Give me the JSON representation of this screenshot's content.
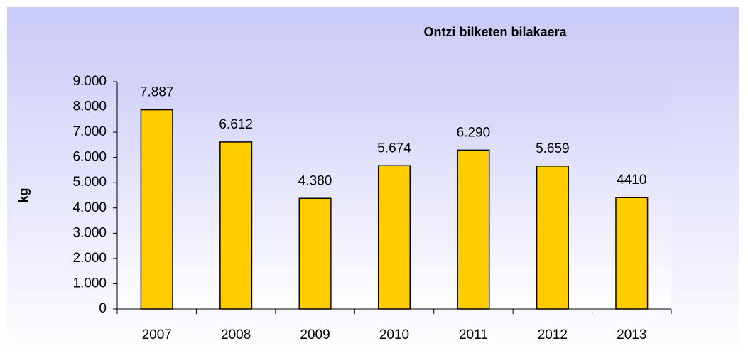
{
  "chart_data": {
    "type": "bar",
    "title": "Ontzi bilketen bilakaera",
    "y_label": "kg",
    "categories": [
      "2007",
      "2008",
      "2009",
      "2010",
      "2011",
      "2012",
      "2013"
    ],
    "values": [
      7887,
      6612,
      4380,
      5674,
      6290,
      5659,
      4410
    ],
    "value_labels": [
      "7.887",
      "6.612",
      "4.380",
      "5.674",
      "6.290",
      "5.659",
      "4410"
    ],
    "color": "#ffcc00",
    "ylim": [
      0,
      9000
    ],
    "yticks": [
      0,
      {
        "value": 1000,
        "label": "1.000"
      },
      {
        "value": 2000,
        "label": "2.000"
      },
      {
        "value": 3000,
        "label": "3.000"
      },
      {
        "value": 4000,
        "label": "4.000"
      },
      {
        "value": 5000,
        "label": "5.000"
      },
      {
        "value": 6000,
        "label": "6.000"
      },
      {
        "value": 7000,
        "label": "7.000"
      },
      {
        "value": 8000,
        "label": "8.000"
      },
      {
        "value": 9000,
        "label": "9.000"
      }
    ],
    "grid": false
  }
}
